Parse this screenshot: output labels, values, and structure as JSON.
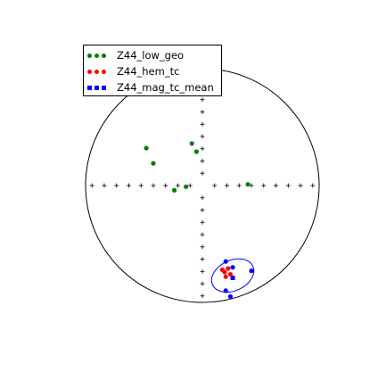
{
  "chart_data": {
    "type": "scatter",
    "projection": "equal-area stereonet (lower hemisphere)",
    "grid": false,
    "tick_crosses": true,
    "legend_position": "top-left",
    "series": [
      {
        "name": "Z44_low_geo",
        "marker": "circle",
        "color": "#008000",
        "points": [
          {
            "x": -0.48,
            "y": 0.32
          },
          {
            "x": -0.42,
            "y": 0.19
          },
          {
            "x": -0.09,
            "y": 0.36
          },
          {
            "x": -0.05,
            "y": 0.29
          },
          {
            "x": -0.24,
            "y": -0.04
          },
          {
            "x": -0.14,
            "y": -0.01
          },
          {
            "x": 0.39,
            "y": 0.01
          }
        ]
      },
      {
        "name": "Z44_hem_tc",
        "marker": "circle",
        "color": "#ff0000",
        "points": [
          {
            "x": 0.17,
            "y": -0.72
          },
          {
            "x": 0.19,
            "y": -0.74
          },
          {
            "x": 0.22,
            "y": -0.71
          },
          {
            "x": 0.24,
            "y": -0.76
          },
          {
            "x": 0.2,
            "y": -0.78
          }
        ]
      },
      {
        "name": "Z44_mag_tc_mean",
        "marker": "square",
        "color": "#0000ff",
        "points": [
          {
            "x": 0.26,
            "y": -0.79
          }
        ],
        "confidence_ellipse": {
          "cx": 0.26,
          "cy": -0.77,
          "rx": 0.19,
          "ry": 0.13,
          "angle_deg": -25
        }
      },
      {
        "name": "",
        "marker": "circle",
        "color": "#0000ff",
        "points": [
          {
            "x": 0.2,
            "y": -0.65
          },
          {
            "x": 0.26,
            "y": -0.7
          },
          {
            "x": 0.42,
            "y": -0.73
          },
          {
            "x": 0.24,
            "y": -0.95
          },
          {
            "x": 0.2,
            "y": -0.9
          }
        ]
      }
    ]
  }
}
